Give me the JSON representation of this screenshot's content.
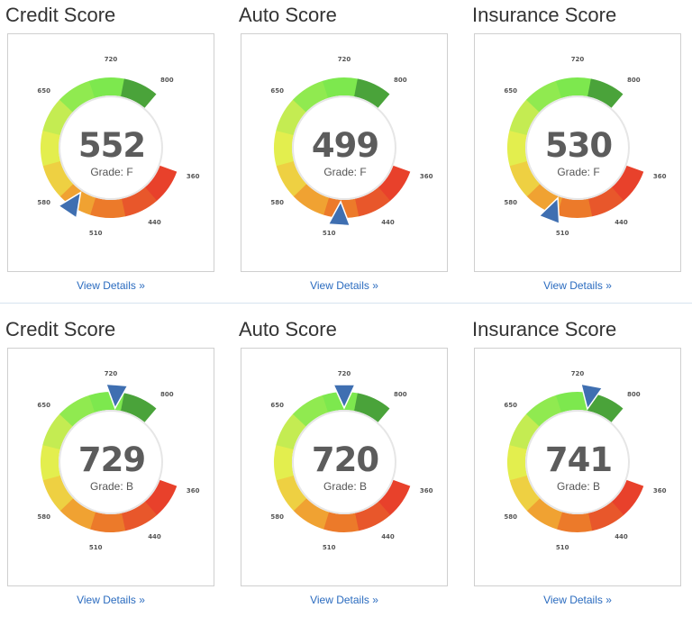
{
  "panels": [
    {
      "title": "Credit Score",
      "score": "552",
      "grade": "Grade: F",
      "pointer": 552,
      "link": "View Details »"
    },
    {
      "title": "Auto Score",
      "score": "499",
      "grade": "Grade: F",
      "pointer": 499,
      "link": "View Details »"
    },
    {
      "title": "Insurance Score",
      "score": "530",
      "grade": "Grade: F",
      "pointer": 530,
      "link": "View Details »"
    },
    {
      "title": "Credit Score",
      "score": "729",
      "grade": "Grade: B",
      "pointer": 729,
      "link": "View Details »"
    },
    {
      "title": "Auto Score",
      "score": "720",
      "grade": "Grade: B",
      "pointer": 720,
      "link": "View Details »"
    },
    {
      "title": "Insurance Score",
      "score": "741",
      "grade": "Grade: B",
      "pointer": 741,
      "link": "View Details »"
    }
  ],
  "ticks": [
    "360",
    "440",
    "510",
    "580",
    "650",
    "720",
    "800"
  ],
  "colors": {
    "segments": [
      "#e8412b",
      "#e8572b",
      "#ec7a2a",
      "#f0a232",
      "#eed042",
      "#e3ee4e",
      "#c4ec52",
      "#90ea50",
      "#7de84e",
      "#4aa33a"
    ],
    "pointer": "#3f6fb1",
    "link": "#2a6bbf"
  }
}
